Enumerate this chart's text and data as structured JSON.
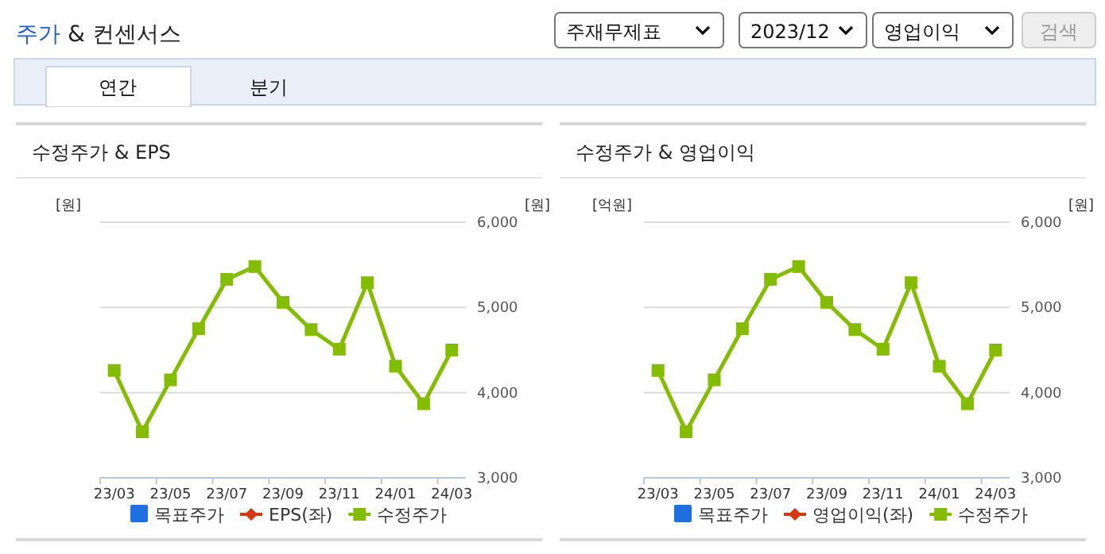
{
  "chart_data": [
    {
      "type": "other",
      "title": "주가 & 컨센서스",
      "annotations": [
        "주재무제표",
        "2023/12",
        "영업이익",
        "검색",
        "연간",
        "분기"
      ]
    },
    {
      "type": "line",
      "title": "수정주가 & EPS",
      "ylabel": "[원]",
      "y2label": "[원]",
      "categories": [
        "23/03",
        null,
        "23/05",
        null,
        "23/07",
        null,
        "23/09",
        null,
        "23/11",
        null,
        "24/01",
        null,
        "24/03"
      ],
      "series": [
        {
          "name": "목표주가",
          "type": "bar",
          "color": "#1f6fe0",
          "values": [
            null,
            null,
            null,
            null,
            null,
            null,
            null,
            null,
            null,
            null,
            null,
            null,
            null
          ]
        },
        {
          "name": "EPS(좌)",
          "color": "#d43a12",
          "marker": "diamond",
          "values": [
            null,
            null,
            null,
            null,
            null,
            null,
            null,
            null,
            null,
            null,
            null,
            null,
            null
          ]
        },
        {
          "name": "수정주가",
          "color": "#84bd00",
          "marker": "square",
          "axis": "y2",
          "values": [
            4260,
            3540,
            4150,
            4750,
            5330,
            5480,
            5060,
            4740,
            4510,
            5290,
            4310,
            3870,
            4500
          ]
        }
      ],
      "y2lim": [
        3000,
        6000
      ],
      "y2ticks": [
        {
          "value": 3000,
          "label": "3,000"
        },
        {
          "value": 4000,
          "label": "4,000"
        },
        {
          "value": 5000,
          "label": "5,000"
        },
        {
          "value": 6000,
          "label": "6,000"
        }
      ],
      "grid": true,
      "legend": "bottom"
    },
    {
      "type": "line",
      "title": "수정주가 & 영업이익",
      "ylabel": "[억원]",
      "y2label": "[원]",
      "categories": [
        "23/03",
        null,
        "23/05",
        null,
        "23/07",
        null,
        "23/09",
        null,
        "23/11",
        null,
        "24/01",
        null,
        "24/03"
      ],
      "series": [
        {
          "name": "목표주가",
          "type": "bar",
          "color": "#1f6fe0",
          "values": [
            null,
            null,
            null,
            null,
            null,
            null,
            null,
            null,
            null,
            null,
            null,
            null,
            null
          ]
        },
        {
          "name": "영업이익(좌)",
          "color": "#d43a12",
          "marker": "diamond",
          "values": [
            null,
            null,
            null,
            null,
            null,
            null,
            null,
            null,
            null,
            null,
            null,
            null,
            null
          ]
        },
        {
          "name": "수정주가",
          "color": "#84bd00",
          "marker": "square",
          "axis": "y2",
          "values": [
            4260,
            3540,
            4150,
            4750,
            5330,
            5480,
            5060,
            4740,
            4510,
            5290,
            4310,
            3870,
            4500
          ]
        }
      ],
      "y2lim": [
        3000,
        6000
      ],
      "y2ticks": [
        {
          "value": 3000,
          "label": "3,000"
        },
        {
          "value": 4000,
          "label": "4,000"
        },
        {
          "value": 5000,
          "label": "5,000"
        },
        {
          "value": 6000,
          "label": "6,000"
        }
      ],
      "grid": true,
      "legend": "bottom"
    }
  ]
}
